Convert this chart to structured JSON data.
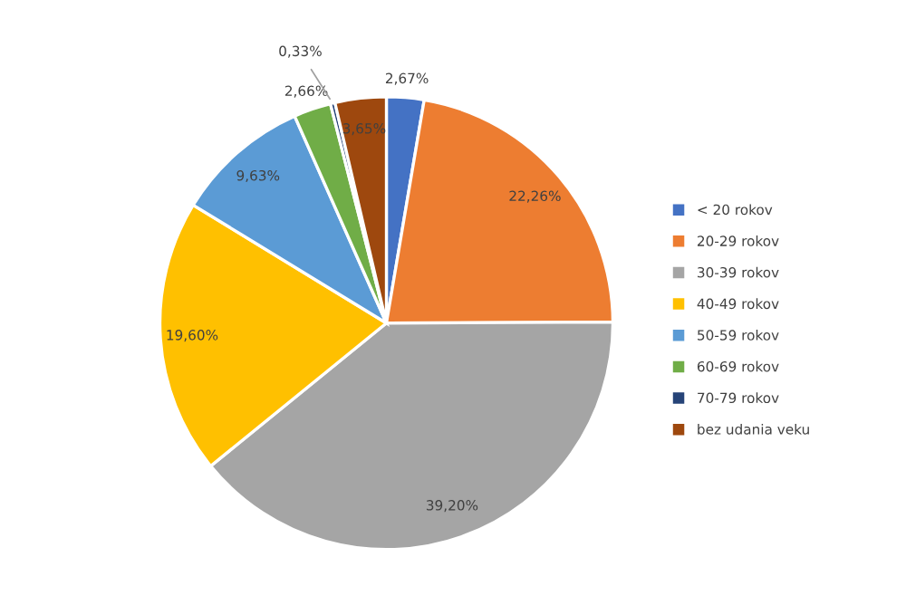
{
  "chart_data": {
    "type": "pie",
    "categories": [
      "< 20 rokov",
      "20-29 rokov",
      "30-39 rokov",
      "40-49 rokov",
      "50-59 rokov",
      "60-69 rokov",
      "70-79 rokov",
      "bez udania veku"
    ],
    "values": [
      2.67,
      22.26,
      39.2,
      19.6,
      9.63,
      2.66,
      0.33,
      3.65
    ],
    "value_labels": [
      "2,67%",
      "22,26%",
      "39,20%",
      "19,60%",
      "9,63%",
      "2,66%",
      "0,33%",
      "3,65%"
    ],
    "colors": [
      "#4472c4",
      "#ed7d31",
      "#a5a5a5",
      "#ffc000",
      "#5b9bd5",
      "#70ad47",
      "#264478",
      "#9e480e"
    ],
    "legend": "right"
  }
}
